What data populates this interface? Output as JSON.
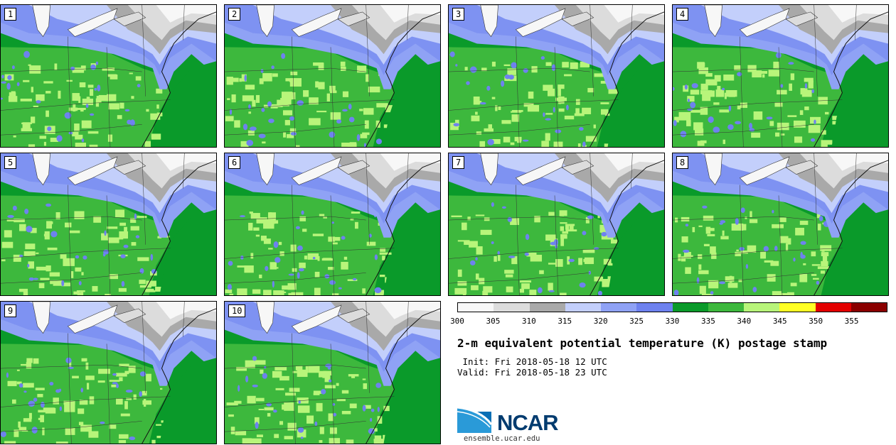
{
  "panels": [
    {
      "label": "1"
    },
    {
      "label": "2"
    },
    {
      "label": "3"
    },
    {
      "label": "4"
    },
    {
      "label": "5"
    },
    {
      "label": "6"
    },
    {
      "label": "7"
    },
    {
      "label": "8"
    },
    {
      "label": "9"
    },
    {
      "label": "10"
    }
  ],
  "colorbar": {
    "colors": [
      "#f7f7f7",
      "#dcdcdc",
      "#a9a9a9",
      "#c3cffb",
      "#8fa2f5",
      "#6e82ef",
      "#0a9a2a",
      "#3db83d",
      "#b8f57a",
      "#ffff24",
      "#e30000",
      "#8a0000"
    ],
    "ticks": [
      "300",
      "305",
      "310",
      "315",
      "320",
      "325",
      "330",
      "335",
      "340",
      "345",
      "350",
      "355"
    ]
  },
  "title": "2-m equivalent potential temperature (K) postage stamp",
  "init": " Init: Fri 2018-05-18 12 UTC",
  "valid": "Valid: Fri 2018-05-18 23 UTC",
  "logo": {
    "text": "NCAR",
    "site": "ensemble.ucar.edu"
  }
}
